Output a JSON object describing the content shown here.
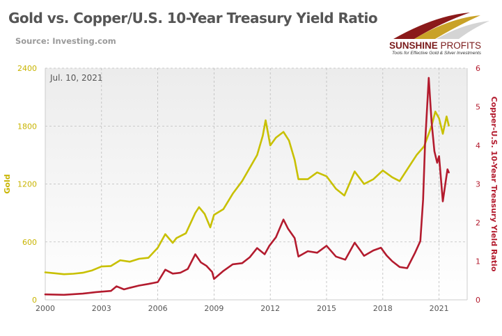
{
  "title": "Gold vs. Copper/U.S. 10-Year Treasury Yield Ratio",
  "source": "Source: Investing.com",
  "logo": {
    "name_bold": "SUNSHINE",
    "name_light": " PROFITS",
    "tagline": "Tools for Effective Gold & Silver Investments",
    "colors": [
      "#8b1a1a",
      "#c9a227",
      "#d4d4d4"
    ]
  },
  "colors": {
    "gold": "#c8c000",
    "ratio": "#b31b2e",
    "gold_axis": "#c8b400",
    "ratio_axis": "#b31b2e",
    "title": "#555555",
    "grid": "#bbbbbb"
  },
  "chart_data": {
    "type": "line",
    "title": "Gold vs. Copper/U.S. 10-Year Treasury Yield Ratio",
    "annotation": "Jul. 10, 2021",
    "xlabel": "",
    "x_ticks": [
      "2000",
      "2003",
      "2006",
      "2009",
      "2012",
      "2015",
      "2018",
      "2021"
    ],
    "xlim": [
      2000.0,
      2022.5
    ],
    "y_left": {
      "label": "Gold",
      "ticks": [
        "0",
        "600",
        "1200",
        "1800",
        "2400"
      ],
      "lim": [
        0,
        2400
      ]
    },
    "y_right": {
      "label": "Copper-U.S. 10-Year Treasury Yield Ratio",
      "ticks": [
        "0",
        "1",
        "2",
        "3",
        "4",
        "5",
        "6"
      ],
      "lim": [
        0,
        6
      ]
    },
    "grid": true,
    "legend": "none",
    "series": [
      {
        "name": "Gold",
        "axis": "left",
        "x": [
          2000.0,
          2000.5,
          2001.0,
          2001.5,
          2002.0,
          2002.5,
          2003.0,
          2003.5,
          2004.0,
          2004.5,
          2005.0,
          2005.5,
          2006.0,
          2006.4,
          2006.8,
          2007.0,
          2007.5,
          2008.0,
          2008.2,
          2008.5,
          2008.8,
          2009.0,
          2009.5,
          2010.0,
          2010.5,
          2011.0,
          2011.3,
          2011.6,
          2011.75,
          2012.0,
          2012.3,
          2012.7,
          2013.0,
          2013.3,
          2013.5,
          2014.0,
          2014.5,
          2015.0,
          2015.5,
          2015.95,
          2016.5,
          2017.0,
          2017.5,
          2018.0,
          2018.5,
          2018.9,
          2019.4,
          2019.8,
          2020.2,
          2020.6,
          2020.8,
          2021.0,
          2021.2,
          2021.4,
          2021.52
        ],
        "y": [
          285,
          275,
          265,
          270,
          280,
          305,
          345,
          350,
          410,
          395,
          425,
          435,
          540,
          680,
          590,
          640,
          690,
          900,
          960,
          890,
          750,
          880,
          940,
          1100,
          1230,
          1400,
          1500,
          1700,
          1860,
          1600,
          1680,
          1740,
          1650,
          1450,
          1250,
          1250,
          1320,
          1280,
          1150,
          1080,
          1330,
          1200,
          1250,
          1340,
          1270,
          1230,
          1380,
          1500,
          1590,
          1800,
          1950,
          1880,
          1720,
          1900,
          1805
        ]
      },
      {
        "name": "Copper-U.S. 10-Year Treasury Yield Ratio",
        "axis": "right",
        "x": [
          2000.0,
          2001.0,
          2002.0,
          2002.7,
          2003.5,
          2003.8,
          2004.2,
          2004.5,
          2005.0,
          2005.5,
          2006.0,
          2006.4,
          2006.8,
          2007.2,
          2007.6,
          2008.0,
          2008.3,
          2008.6,
          2008.9,
          2009.0,
          2009.5,
          2010.0,
          2010.5,
          2010.9,
          2011.3,
          2011.7,
          2011.95,
          2012.3,
          2012.7,
          2012.95,
          2013.3,
          2013.5,
          2014.0,
          2014.5,
          2015.0,
          2015.5,
          2016.0,
          2016.5,
          2016.8,
          2017.0,
          2017.5,
          2017.9,
          2018.2,
          2018.5,
          2018.9,
          2019.3,
          2019.7,
          2020.0,
          2020.15,
          2020.25,
          2020.45,
          2020.6,
          2020.75,
          2020.9,
          2021.0,
          2021.2,
          2021.35,
          2021.45,
          2021.52
        ],
        "y": [
          0.14,
          0.13,
          0.16,
          0.2,
          0.23,
          0.35,
          0.27,
          0.31,
          0.37,
          0.41,
          0.46,
          0.78,
          0.68,
          0.7,
          0.8,
          1.18,
          0.97,
          0.88,
          0.72,
          0.54,
          0.75,
          0.92,
          0.95,
          1.1,
          1.34,
          1.18,
          1.4,
          1.62,
          2.08,
          1.84,
          1.6,
          1.12,
          1.26,
          1.22,
          1.4,
          1.12,
          1.04,
          1.48,
          1.28,
          1.14,
          1.28,
          1.35,
          1.15,
          1.0,
          0.85,
          0.82,
          1.2,
          1.52,
          2.6,
          4.0,
          5.75,
          4.62,
          3.85,
          3.55,
          3.72,
          2.55,
          3.05,
          3.38,
          3.3
        ]
      }
    ]
  }
}
